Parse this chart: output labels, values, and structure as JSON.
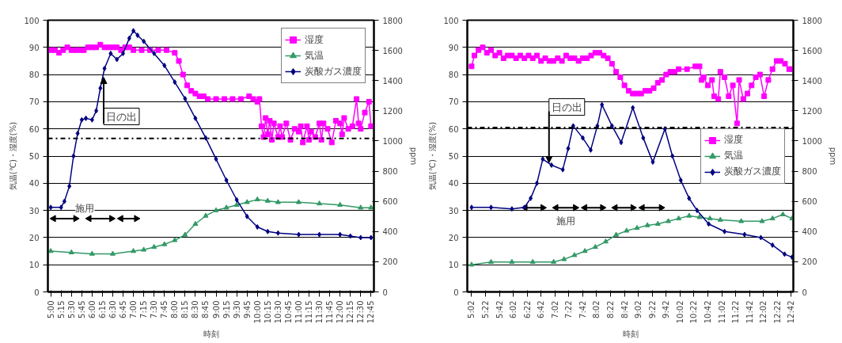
{
  "chart_data": [
    {
      "type": "line",
      "xlabel": "時刻",
      "ylabel": "気温(℃)・湿度(%)",
      "y2label": "ppm",
      "xlim": [
        4.93,
        12.82
      ],
      "ylim": [
        0,
        100
      ],
      "yticks": [
        0,
        10,
        20,
        30,
        40,
        50,
        60,
        70,
        80,
        90,
        100
      ],
      "y2lim": [
        0,
        1800
      ],
      "y2ticks": [
        0,
        200,
        400,
        600,
        800,
        1000,
        1200,
        1400,
        1600,
        1800
      ],
      "xticks": [
        {
          "value": 5,
          "label": "5:00"
        },
        {
          "value": 5.25,
          "label": "5:15"
        },
        {
          "value": 5.5,
          "label": "5:30"
        },
        {
          "value": 5.75,
          "label": "5:45"
        },
        {
          "value": 6,
          "label": "6:00"
        },
        {
          "value": 6.25,
          "label": "6:15"
        },
        {
          "value": 6.5,
          "label": "6:30"
        },
        {
          "value": 6.75,
          "label": "6:45"
        },
        {
          "value": 7,
          "label": "7:00"
        },
        {
          "value": 7.25,
          "label": "7:15"
        },
        {
          "value": 7.5,
          "label": "7:30"
        },
        {
          "value": 7.75,
          "label": "7:45"
        },
        {
          "value": 8,
          "label": "8:00"
        },
        {
          "value": 8.25,
          "label": "8:15"
        },
        {
          "value": 8.5,
          "label": "8:30"
        },
        {
          "value": 8.75,
          "label": "8:45"
        },
        {
          "value": 9,
          "label": "9:00"
        },
        {
          "value": 9.25,
          "label": "9:15"
        },
        {
          "value": 9.5,
          "label": "9:30"
        },
        {
          "value": 9.75,
          "label": "9:45"
        },
        {
          "value": 10,
          "label": "10:00"
        },
        {
          "value": 10.25,
          "label": "10:15"
        },
        {
          "value": 10.5,
          "label": "10:30"
        },
        {
          "value": 10.75,
          "label": "10:45"
        },
        {
          "value": 11,
          "label": "11:00"
        },
        {
          "value": 11.25,
          "label": "11:15"
        },
        {
          "value": 11.5,
          "label": "11:30"
        },
        {
          "value": 11.75,
          "label": "11:45"
        },
        {
          "value": 12,
          "label": "12:00"
        },
        {
          "value": 12.25,
          "label": "12:15"
        },
        {
          "value": 12.5,
          "label": "12:30"
        },
        {
          "value": 12.75,
          "label": "12:45"
        }
      ],
      "grid": "y",
      "legend": "top right",
      "line_style": "solid",
      "series": [
        {
          "name": "湿度",
          "color": "#ff00ff",
          "marker": "square",
          "x": [
            5.0,
            5.1,
            5.2,
            5.3,
            5.4,
            5.5,
            5.6,
            5.7,
            5.8,
            5.9,
            6.0,
            6.1,
            6.2,
            6.3,
            6.4,
            6.5,
            6.6,
            6.7,
            6.8,
            6.9,
            7.0,
            7.2,
            7.4,
            7.6,
            7.8,
            8.0,
            8.1,
            8.2,
            8.3,
            8.4,
            8.5,
            8.6,
            8.7,
            8.8,
            9.0,
            9.2,
            9.4,
            9.6,
            9.8,
            9.9,
            10.0,
            10.05,
            10.1,
            10.15,
            10.2,
            10.25,
            10.3,
            10.35,
            10.4,
            10.5,
            10.55,
            10.6,
            10.7,
            10.8,
            10.9,
            11.0,
            11.05,
            11.1,
            11.2,
            11.25,
            11.3,
            11.4,
            11.5,
            11.55,
            11.6,
            11.7,
            11.8,
            11.9,
            12.0,
            12.05,
            12.1,
            12.2,
            12.3,
            12.4,
            12.45,
            12.5,
            12.6,
            12.7,
            12.75
          ],
          "values": [
            89,
            89,
            88,
            89,
            90,
            89,
            89,
            89,
            89,
            90,
            90,
            90,
            91,
            90,
            90,
            90,
            90,
            89,
            90,
            90,
            89,
            89,
            89,
            89,
            89,
            88,
            85,
            80,
            76,
            74,
            73,
            72,
            72,
            71,
            71,
            71,
            71,
            71,
            72,
            71,
            70,
            71,
            61,
            57,
            64,
            58,
            63,
            56,
            62,
            57,
            61,
            57,
            62,
            56,
            60,
            59,
            61,
            55,
            61,
            56,
            59,
            57,
            62,
            56,
            62,
            60,
            55,
            63,
            62,
            58,
            64,
            60,
            61,
            71,
            62,
            60,
            66,
            70,
            61
          ]
        },
        {
          "name": "気温",
          "color": "#339966",
          "marker": "triangle",
          "x": [
            5.0,
            5.5,
            6.0,
            6.5,
            7.0,
            7.25,
            7.5,
            7.75,
            8.0,
            8.25,
            8.5,
            8.75,
            9.0,
            9.25,
            9.5,
            9.75,
            10.0,
            10.25,
            10.5,
            11.0,
            11.5,
            12.0,
            12.5,
            12.75
          ],
          "values": [
            15,
            14.5,
            14,
            14,
            15,
            15.5,
            16.5,
            17.5,
            19,
            21,
            25,
            28,
            30,
            31,
            32,
            33,
            34,
            33.5,
            33,
            33,
            32.5,
            32,
            31,
            31
          ]
        },
        {
          "color": "#000000",
          "marker": "triangle",
          "x": [
            5.07,
            5.6,
            null,
            5.93,
            6.47,
            null,
            6.7,
            7.07
          ],
          "values": [
            27,
            27,
            null,
            27,
            27,
            null,
            27,
            27
          ]
        },
        {
          "name": "炭酸ガス濃度",
          "color": "#000080",
          "marker": "diamond",
          "axis": "y2",
          "x": [
            5.0,
            5.25,
            5.33,
            5.45,
            5.55,
            5.65,
            5.75,
            5.85,
            6.0,
            6.1,
            6.2,
            6.3,
            6.45,
            6.6,
            6.75,
            6.9,
            7.0,
            7.1,
            7.25,
            7.5,
            7.75,
            8.0,
            8.25,
            8.5,
            8.75,
            9.0,
            9.25,
            9.5,
            9.75,
            10.0,
            10.25,
            10.5,
            11.0,
            11.5,
            12.0,
            12.25,
            12.5,
            12.75
          ],
          "values": [
            560,
            560,
            600,
            700,
            900,
            1050,
            1140,
            1150,
            1140,
            1200,
            1350,
            1480,
            1580,
            1540,
            1580,
            1680,
            1730,
            1700,
            1660,
            1580,
            1500,
            1390,
            1280,
            1150,
            1020,
            880,
            740,
            610,
            500,
            430,
            400,
            390,
            380,
            380,
            380,
            370,
            360,
            360
          ]
        }
      ],
      "ref_lines": [
        {
          "axis": "y",
          "value": 56.5,
          "color": "#000000",
          "line_style": "dashdot"
        }
      ],
      "annotations": [
        {
          "text": "日の出",
          "x": 6.28,
          "y": 79
        },
        "施用"
      ]
    },
    {
      "type": "line",
      "xlabel": "時刻",
      "ylabel": "気温(℃)・湿度(%)",
      "y2label": "ppm",
      "xlim": [
        4.93,
        12.75
      ],
      "ylim": [
        0,
        100
      ],
      "yticks": [
        0,
        10,
        20,
        30,
        40,
        50,
        60,
        70,
        80,
        90,
        100
      ],
      "y2lim": [
        0,
        1800
      ],
      "y2ticks": [
        0,
        200,
        400,
        600,
        800,
        1000,
        1200,
        1400,
        1600,
        1800
      ],
      "xticks": [
        {
          "value": 5.033,
          "label": "5:02"
        },
        {
          "value": 5.367,
          "label": "5:22"
        },
        {
          "value": 5.7,
          "label": "5:42"
        },
        {
          "value": 6.033,
          "label": "6:02"
        },
        {
          "value": 6.367,
          "label": "6:22"
        },
        {
          "value": 6.7,
          "label": "6:42"
        },
        {
          "value": 7.033,
          "label": "7:02"
        },
        {
          "value": 7.367,
          "label": "7:22"
        },
        {
          "value": 7.7,
          "label": "7:42"
        },
        {
          "value": 8.033,
          "label": "8:02"
        },
        {
          "value": 8.367,
          "label": "8:22"
        },
        {
          "value": 8.7,
          "label": "8:42"
        },
        {
          "value": 9.033,
          "label": "9:02"
        },
        {
          "value": 9.367,
          "label": "9:22"
        },
        {
          "value": 9.7,
          "label": "9:42"
        },
        {
          "value": 10.033,
          "label": "10:02"
        },
        {
          "value": 10.367,
          "label": "10:22"
        },
        {
          "value": 10.7,
          "label": "10:42"
        },
        {
          "value": 11.033,
          "label": "11:02"
        },
        {
          "value": 11.367,
          "label": "11:22"
        },
        {
          "value": 11.7,
          "label": "11:42"
        },
        {
          "value": 12.033,
          "label": "12:02"
        },
        {
          "value": 12.367,
          "label": "12:22"
        },
        {
          "value": 12.7,
          "label": "12:42"
        }
      ],
      "grid": "y",
      "legend": "right",
      "line_style": "solid",
      "series": [
        {
          "name": "湿度",
          "color": "#ff00ff",
          "marker": "square",
          "x": [
            5.033,
            5.1,
            5.2,
            5.3,
            5.4,
            5.5,
            5.6,
            5.7,
            5.8,
            5.9,
            6.0,
            6.1,
            6.2,
            6.3,
            6.4,
            6.5,
            6.6,
            6.7,
            6.8,
            6.9,
            7.0,
            7.1,
            7.2,
            7.3,
            7.4,
            7.5,
            7.6,
            7.7,
            7.8,
            7.9,
            8.0,
            8.1,
            8.2,
            8.3,
            8.4,
            8.5,
            8.6,
            8.7,
            8.8,
            8.9,
            9.0,
            9.1,
            9.2,
            9.3,
            9.4,
            9.5,
            9.6,
            9.7,
            9.8,
            9.9,
            10.0,
            10.2,
            10.4,
            10.5,
            10.55,
            10.6,
            10.7,
            10.8,
            10.85,
            10.95,
            11.0,
            11.1,
            11.2,
            11.3,
            11.4,
            11.45,
            11.55,
            11.65,
            11.75,
            11.85,
            11.95,
            12.05,
            12.15,
            12.25,
            12.35,
            12.45,
            12.55,
            12.65,
            12.72
          ],
          "values": [
            83,
            87,
            89,
            90,
            88,
            89,
            87,
            88,
            86,
            87,
            87,
            86,
            87,
            86,
            87,
            86,
            87,
            85,
            86,
            85,
            85,
            86,
            85,
            87,
            86,
            86,
            85,
            86,
            86,
            87,
            88,
            88,
            87,
            86,
            84,
            81,
            79,
            76,
            74,
            73,
            73,
            73,
            74,
            74,
            75,
            77,
            78,
            80,
            81,
            81,
            82,
            82,
            83,
            83,
            78,
            79,
            76,
            78,
            72,
            71,
            81,
            79,
            72,
            76,
            62,
            78,
            71,
            73,
            76,
            79,
            80,
            72,
            78,
            82,
            85,
            85,
            84,
            82,
            82
          ]
        },
        {
          "name": "気温",
          "color": "#339966",
          "marker": "triangle",
          "x": [
            5.033,
            5.5,
            6.0,
            6.5,
            7.0,
            7.25,
            7.5,
            7.75,
            8.0,
            8.25,
            8.5,
            8.75,
            9.0,
            9.25,
            9.5,
            9.75,
            10.0,
            10.25,
            10.5,
            10.75,
            11.0,
            11.5,
            12.0,
            12.25,
            12.5,
            12.72
          ],
          "values": [
            10,
            11,
            11,
            11,
            11,
            12,
            13.5,
            15,
            16.5,
            18.5,
            21,
            22.5,
            23.5,
            24.5,
            25,
            26,
            27,
            28,
            27.5,
            27,
            26.5,
            26,
            26,
            27,
            28.5,
            27
          ]
        },
        {
          "color": "#000000",
          "marker": "triangle",
          "x": [
            6.32,
            6.74,
            null,
            7.06,
            7.52,
            null,
            7.75,
            8.17,
            null,
            8.48,
            8.9,
            null,
            9.13,
            9.58
          ],
          "values": [
            31,
            31,
            null,
            31,
            31,
            null,
            31,
            31,
            null,
            31,
            31,
            null,
            31,
            31
          ]
        },
        {
          "name": "炭酸ガス濃度",
          "color": "#000080",
          "marker": "diamond",
          "axis": "y2",
          "x": [
            5.033,
            5.5,
            6.0,
            6.3,
            6.45,
            6.6,
            6.74,
            6.95,
            7.22,
            7.35,
            7.47,
            7.7,
            7.89,
            8.05,
            8.16,
            8.4,
            8.62,
            8.9,
            9.15,
            9.38,
            9.67,
            9.85,
            10.05,
            10.25,
            10.44,
            10.72,
            11.1,
            11.58,
            11.97,
            12.25,
            12.54,
            12.72
          ],
          "values": [
            560,
            560,
            550,
            560,
            620,
            720,
            880,
            840,
            810,
            950,
            1100,
            1020,
            940,
            1100,
            1240,
            1100,
            990,
            1220,
            1020,
            860,
            1080,
            900,
            740,
            620,
            540,
            450,
            400,
            380,
            360,
            310,
            250,
            230
          ]
        }
      ],
      "ref_lines": [
        {
          "axis": "y",
          "value": 60.5,
          "color": "#000000",
          "line_style": "dashdot"
        }
      ],
      "annotations": [
        {
          "text": "日の出",
          "x": 6.89,
          "y": 47.5
        },
        "施用"
      ]
    }
  ]
}
